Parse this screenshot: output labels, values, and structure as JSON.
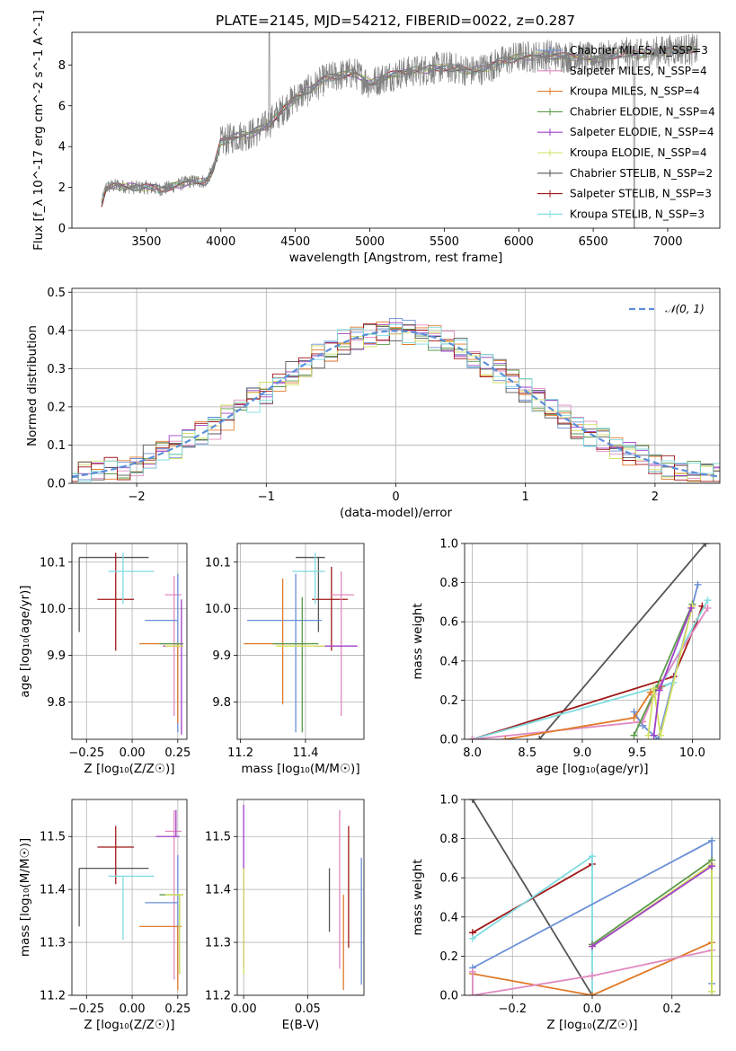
{
  "chart_data": [
    {
      "id": "spectrum",
      "type": "line",
      "title": "PLATE=2145, MJD=54212, FIBERID=0022, z=0.287",
      "xlabel": "wavelength [Angstrom, rest frame]",
      "ylabel": "Flux [f_λ 10^-17 erg cm^-2 s^-1 A^-1]",
      "xlim": [
        3000,
        7350
      ],
      "ylim": [
        0,
        9.6
      ],
      "xticks": [
        3500,
        4000,
        4500,
        5000,
        5500,
        6000,
        6500,
        7000
      ],
      "yticks": [
        0,
        2,
        4,
        6,
        8
      ],
      "grid": false,
      "legend_position": "top-right",
      "series": [
        {
          "name": "Chabrier MILES, N_SSP=3",
          "color": "#6a8fd6"
        },
        {
          "name": "Salpeter MILES, N_SSP=4",
          "color": "#e08ac0"
        },
        {
          "name": "Kroupa MILES, N_SSP=4",
          "color": "#e07b2a"
        },
        {
          "name": "Chabrier ELODIE, N_SSP=4",
          "color": "#5a9a4a"
        },
        {
          "name": "Salpeter ELODIE, N_SSP=4",
          "color": "#a040c8"
        },
        {
          "name": "Kroupa ELODIE, N_SSP=4",
          "color": "#d4e060"
        },
        {
          "name": "Chabrier STELIB, N_SSP=2",
          "color": "#555555"
        },
        {
          "name": "Salpeter STELIB, N_SSP=3",
          "color": "#a01818"
        },
        {
          "name": "Kroupa STELIB, N_SSP=3",
          "color": "#80dce0"
        }
      ],
      "observed_color": "#808080",
      "continuum": [
        [
          3200,
          1.2
        ],
        [
          3230,
          2.0
        ],
        [
          3300,
          2.1
        ],
        [
          3400,
          2.0
        ],
        [
          3500,
          2.0
        ],
        [
          3600,
          1.9
        ],
        [
          3700,
          2.1
        ],
        [
          3800,
          2.3
        ],
        [
          3900,
          2.3
        ],
        [
          3950,
          2.9
        ],
        [
          4000,
          4.2
        ],
        [
          4100,
          4.5
        ],
        [
          4200,
          4.6
        ],
        [
          4300,
          5.0
        ],
        [
          4400,
          5.7
        ],
        [
          4500,
          6.4
        ],
        [
          4600,
          6.8
        ],
        [
          4700,
          7.3
        ],
        [
          4800,
          7.5
        ],
        [
          4900,
          7.6
        ],
        [
          5000,
          7.1
        ],
        [
          5100,
          7.4
        ],
        [
          5200,
          7.6
        ],
        [
          5300,
          7.7
        ],
        [
          5400,
          7.8
        ],
        [
          5500,
          7.9
        ],
        [
          5600,
          7.8
        ],
        [
          5700,
          7.7
        ],
        [
          5800,
          7.9
        ],
        [
          5900,
          8.2
        ],
        [
          6000,
          8.4
        ],
        [
          6100,
          8.4
        ],
        [
          6200,
          8.5
        ],
        [
          6300,
          8.4
        ],
        [
          6400,
          8.4
        ],
        [
          6500,
          8.3
        ],
        [
          6600,
          8.4
        ],
        [
          6700,
          8.6
        ],
        [
          6800,
          8.5
        ],
        [
          6900,
          8.6
        ],
        [
          7000,
          8.7
        ],
        [
          7100,
          8.8
        ],
        [
          7200,
          8.7
        ]
      ]
    },
    {
      "id": "residuals",
      "type": "line",
      "xlabel": "(data-model)/error",
      "ylabel": "Normed distribution",
      "xlim": [
        -2.5,
        2.5
      ],
      "ylim": [
        0,
        0.51
      ],
      "xticks": [
        -2,
        -1,
        0,
        1,
        2
      ],
      "yticks": [
        0.0,
        0.1,
        0.2,
        0.3,
        0.4,
        0.5
      ],
      "grid": true,
      "legend_position": "top-right",
      "legend": "𝒩(0, 1)",
      "curve": {
        "mean": 0,
        "sigma": 1,
        "color": "#5b8fd9"
      },
      "histogram": {
        "bin_width": 0.1,
        "series_colors": [
          "#6a8fd6",
          "#e08ac0",
          "#e07b2a",
          "#5a9a4a",
          "#a040c8",
          "#d4e060",
          "#555555",
          "#a01818",
          "#80dce0"
        ]
      }
    },
    {
      "id": "age_vs_z",
      "type": "scatter",
      "xlabel": "Z [log₁₀(Z/Z☉)]",
      "ylabel": "age  [log₁₀(age/yr)]",
      "xlim": [
        -0.33,
        0.3
      ],
      "ylim": [
        9.72,
        10.14
      ],
      "xticks": [
        -0.25,
        0.0,
        0.25
      ],
      "yticks": [
        9.8,
        9.9,
        10.0,
        10.1
      ],
      "grid": true,
      "points": [
        {
          "x": -0.29,
          "y": 10.11,
          "xl": 0,
          "xh": 0.38,
          "yl": 0.16,
          "yh": 0.0,
          "color": "#555555"
        },
        {
          "x": -0.09,
          "y": 10.02,
          "xl": 0.1,
          "xh": 0.1,
          "yl": 0.11,
          "yh": 0.1,
          "color": "#a01818"
        },
        {
          "x": -0.05,
          "y": 10.08,
          "xl": 0.08,
          "xh": 0.17,
          "yl": 0.07,
          "yh": 0.04,
          "color": "#80dce0"
        },
        {
          "x": 0.23,
          "y": 10.03,
          "xl": 0.05,
          "xh": 0.04,
          "yl": 0.26,
          "yh": 0.04,
          "color": "#e08ac0"
        },
        {
          "x": 0.25,
          "y": 9.975,
          "xl": 0.18,
          "xh": 0.0,
          "yl": 0.24,
          "yh": 0.1,
          "color": "#6a8fd6"
        },
        {
          "x": 0.25,
          "y": 9.925,
          "xl": 0.21,
          "xh": 0.02,
          "yl": 0.17,
          "yh": 0.0,
          "color": "#e07b2a"
        },
        {
          "x": 0.26,
          "y": 9.925,
          "xl": 0.11,
          "xh": 0.02,
          "yl": 0.0,
          "yh": 0.0,
          "color": "#5a9a4a"
        },
        {
          "x": 0.27,
          "y": 9.92,
          "xl": 0.1,
          "xh": 0.01,
          "yl": 0.19,
          "yh": 0.1,
          "color": "#a040c8"
        },
        {
          "x": 0.26,
          "y": 9.92,
          "xl": 0.08,
          "xh": 0.02,
          "yl": 0.0,
          "yh": 0.0,
          "color": "#d4e060"
        }
      ]
    },
    {
      "id": "age_vs_mass",
      "type": "scatter",
      "xlabel": "mass [log₁₀(M/M☉)]",
      "ylabel": "",
      "xlim": [
        11.19,
        11.58
      ],
      "ylim": [
        9.72,
        10.14
      ],
      "xticks": [
        11.2,
        11.4
      ],
      "yticks": [
        9.8,
        9.9,
        10.0,
        10.1
      ],
      "grid": true,
      "points": [
        {
          "x": 11.44,
          "y": 10.11,
          "xl": 0.07,
          "xh": 0.02,
          "yl": 0.16,
          "yh": 0.0,
          "color": "#555555"
        },
        {
          "x": 11.48,
          "y": 10.02,
          "xl": 0.06,
          "xh": 0.05,
          "yl": 0.11,
          "yh": 0.07,
          "color": "#a01818"
        },
        {
          "x": 11.43,
          "y": 10.08,
          "xl": 0.07,
          "xh": 0.03,
          "yl": 0.07,
          "yh": 0.04,
          "color": "#80dce0"
        },
        {
          "x": 11.51,
          "y": 10.03,
          "xl": 0.03,
          "xh": 0.04,
          "yl": 0.26,
          "yh": 0.05,
          "color": "#e08ac0"
        },
        {
          "x": 11.37,
          "y": 9.975,
          "xl": 0.15,
          "xh": 0.08,
          "yl": 0.24,
          "yh": 0.1,
          "color": "#6a8fd6"
        },
        {
          "x": 11.33,
          "y": 9.925,
          "xl": 0.12,
          "xh": 0.07,
          "yl": 0.13,
          "yh": 0.14,
          "color": "#e07b2a"
        },
        {
          "x": 11.39,
          "y": 9.925,
          "xl": 0.09,
          "xh": 0.05,
          "yl": 0.19,
          "yh": 0.1,
          "color": "#5a9a4a"
        },
        {
          "x": 11.5,
          "y": 9.92,
          "xl": 0.07,
          "xh": 0.06,
          "yl": 0.0,
          "yh": 0.0,
          "color": "#a040c8"
        },
        {
          "x": 11.39,
          "y": 9.92,
          "xl": 0.08,
          "xh": 0.07,
          "yl": 0.0,
          "yh": 0.0,
          "color": "#d4e060"
        }
      ]
    },
    {
      "id": "weight_vs_age",
      "type": "line",
      "xlabel": "age  [log₁₀(age/yr)]",
      "ylabel": "mass weight",
      "xlim": [
        7.93,
        10.25
      ],
      "ylim": [
        0,
        1
      ],
      "xticks": [
        8.0,
        8.5,
        9.0,
        9.5,
        10.0
      ],
      "yticks": [
        0.0,
        0.2,
        0.4,
        0.6,
        0.8,
        1.0
      ],
      "grid": true,
      "series": [
        {
          "color": "#555555",
          "x": [
            8.61,
            10.12
          ],
          "y": [
            0.0,
            1.0
          ]
        },
        {
          "color": "#a01818",
          "x": [
            8.0,
            9.83,
            10.04,
            10.09
          ],
          "y": [
            0.0,
            0.32,
            0.6,
            0.68
          ]
        },
        {
          "color": "#6a8fd6",
          "x": [
            9.47,
            9.55,
            9.69,
            10.05
          ],
          "y": [
            0.14,
            0.07,
            0.0,
            0.79
          ]
        },
        {
          "color": "#80dce0",
          "x": [
            8.0,
            9.83,
            9.7,
            10.14
          ],
          "y": [
            0.0,
            0.29,
            0.26,
            0.71
          ]
        },
        {
          "color": "#e08ac0",
          "x": [
            8.0,
            9.55,
            9.65,
            10.14
          ],
          "y": [
            0.0,
            0.09,
            0.23,
            0.67
          ]
        },
        {
          "color": "#e07b2a",
          "x": [
            8.3,
            9.47,
            9.62,
            9.72
          ],
          "y": [
            0.0,
            0.11,
            0.24,
            0.27
          ]
        },
        {
          "color": "#5a9a4a",
          "x": [
            9.47,
            9.67,
            10.0
          ],
          "y": [
            0.02,
            0.26,
            0.69
          ]
        },
        {
          "color": "#d4e060",
          "x": [
            9.6,
            9.65,
            9.71,
            10.0
          ],
          "y": [
            0.02,
            0.26,
            0.02,
            0.68
          ]
        },
        {
          "color": "#a040c8",
          "x": [
            9.65,
            9.7,
            9.99
          ],
          "y": [
            0.02,
            0.25,
            0.67
          ]
        }
      ]
    },
    {
      "id": "mass_vs_z",
      "type": "scatter",
      "xlabel": "Z [log₁₀(Z/Z☉)]",
      "ylabel": "mass [log₁₀(M/M☉)]",
      "xlim": [
        -0.33,
        0.3
      ],
      "ylim": [
        11.2,
        11.57
      ],
      "xticks": [
        -0.25,
        0.0,
        0.25
      ],
      "yticks": [
        11.2,
        11.3,
        11.4,
        11.5
      ],
      "grid": true,
      "points": [
        {
          "x": -0.29,
          "y": 11.44,
          "xl": 0,
          "xh": 0.38,
          "yl": 0.11,
          "yh": 0.0,
          "color": "#555555"
        },
        {
          "x": -0.09,
          "y": 11.48,
          "xl": 0.1,
          "xh": 0.1,
          "yl": 0.07,
          "yh": 0.04,
          "color": "#a01818"
        },
        {
          "x": -0.05,
          "y": 11.425,
          "xl": 0.08,
          "xh": 0.17,
          "yl": 0.12,
          "yh": 0.0,
          "color": "#80dce0"
        },
        {
          "x": 0.23,
          "y": 11.51,
          "xl": 0.05,
          "xh": 0.04,
          "yl": 0.28,
          "yh": 0.04,
          "color": "#e08ac0"
        },
        {
          "x": 0.25,
          "y": 11.375,
          "xl": 0.18,
          "xh": 0.0,
          "yl": 0.15,
          "yh": 0.09,
          "color": "#6a8fd6"
        },
        {
          "x": 0.25,
          "y": 11.33,
          "xl": 0.21,
          "xh": 0.02,
          "yl": 0.12,
          "yh": 0.0,
          "color": "#e07b2a"
        },
        {
          "x": 0.26,
          "y": 11.39,
          "xl": 0.11,
          "xh": 0.02,
          "yl": 0.15,
          "yh": 0.0,
          "color": "#5a9a4a"
        },
        {
          "x": 0.24,
          "y": 11.5,
          "xl": 0.11,
          "xh": 0.02,
          "yl": 0.0,
          "yh": 0.05,
          "color": "#a040c8"
        },
        {
          "x": 0.26,
          "y": 11.39,
          "xl": 0.08,
          "xh": 0.02,
          "yl": 0.15,
          "yh": 0.0,
          "color": "#d4e060"
        }
      ]
    },
    {
      "id": "mass_vs_ebv",
      "type": "scatter",
      "xlabel": "E(B-V)",
      "ylabel": "",
      "xlim": [
        -0.005,
        0.094
      ],
      "ylim": [
        11.2,
        11.57
      ],
      "xticks": [
        0.0,
        0.05
      ],
      "xtick_labels": [
        "0.00",
        "0.05"
      ],
      "yticks": [
        11.2,
        11.3,
        11.4,
        11.5
      ],
      "grid": true,
      "points": [
        {
          "x": 0.0,
          "y": 11.44,
          "yl": 0.19,
          "yh": 0.12,
          "color": "#a040c8"
        },
        {
          "x": 0.0,
          "y": 11.39,
          "yl": 0.15,
          "yh": 0.05,
          "color": "#d4e060"
        },
        {
          "x": 0.067,
          "y": 11.38,
          "yl": 0.06,
          "yh": 0.06,
          "color": "#555555"
        },
        {
          "x": 0.075,
          "y": 11.35,
          "yl": 0.1,
          "yh": 0.2,
          "color": "#e08ac0"
        },
        {
          "x": 0.078,
          "y": 11.29,
          "yl": 0.08,
          "yh": 0.1,
          "color": "#e07b2a"
        },
        {
          "x": 0.082,
          "y": 11.4,
          "yl": 0.11,
          "yh": 0.12,
          "color": "#a01818"
        },
        {
          "x": 0.092,
          "y": 11.34,
          "yl": 0.12,
          "yh": 0.12,
          "color": "#6a8fd6"
        }
      ]
    },
    {
      "id": "weight_vs_z",
      "type": "line",
      "xlabel": "Z [log₁₀(Z/Z☉)]",
      "ylabel": "mass weight",
      "xlim": [
        -0.32,
        0.32
      ],
      "ylim": [
        0,
        1
      ],
      "xticks": [
        -0.2,
        0.0,
        0.2
      ],
      "yticks": [
        0.0,
        0.2,
        0.4,
        0.6,
        0.8,
        1.0
      ],
      "grid": true,
      "series": [
        {
          "color": "#555555",
          "x": [
            -0.3,
            0.0
          ],
          "y": [
            1.0,
            0.0
          ]
        },
        {
          "color": "#a01818",
          "x": [
            -0.3,
            0.0
          ],
          "y": [
            0.32,
            0.67
          ]
        },
        {
          "color": "#80dce0",
          "x": [
            -0.3,
            0.0,
            0.0
          ],
          "y": [
            0.29,
            0.71,
            0.0
          ]
        },
        {
          "color": "#6a8fd6",
          "x": [
            -0.3,
            0.3,
            0.3
          ],
          "y": [
            0.14,
            0.79,
            0.06
          ]
        },
        {
          "color": "#e07b2a",
          "x": [
            -0.3,
            0.0,
            0.3
          ],
          "y": [
            0.11,
            0.0,
            0.27
          ]
        },
        {
          "color": "#e08ac0",
          "x": [
            -0.3,
            -0.3,
            0.0,
            0.3
          ],
          "y": [
            0.12,
            0.0,
            0.1,
            0.23
          ]
        },
        {
          "color": "#5a9a4a",
          "x": [
            0.0,
            0.3,
            0.3
          ],
          "y": [
            0.26,
            0.69,
            0.02
          ]
        },
        {
          "color": "#d4e060",
          "x": [
            0.0,
            0.3,
            0.3
          ],
          "y": [
            0.25,
            0.67,
            0.02
          ]
        },
        {
          "color": "#a040c8",
          "x": [
            0.0,
            0.3
          ],
          "y": [
            0.25,
            0.66
          ]
        }
      ]
    }
  ]
}
